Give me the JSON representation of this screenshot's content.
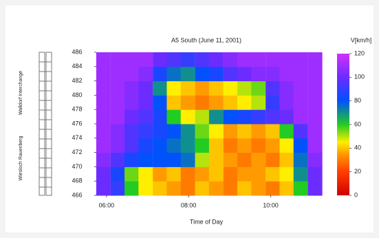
{
  "chart_data": {
    "type": "heatmap",
    "title": "A5 South (June 11, 2001)",
    "x_label": "Time of Day",
    "colorbar_label": "V[km/h]",
    "side_labels": [
      "Walldorf Interchange",
      "Wiesloch Rauenberg"
    ],
    "x": [
      5.92,
      6.27,
      6.61,
      6.95,
      7.3,
      7.64,
      7.98,
      8.33,
      8.67,
      9.02,
      9.36,
      9.7,
      10.05,
      10.39,
      10.73,
      11.08
    ],
    "y": [
      467,
      469,
      471,
      473,
      475,
      477,
      479,
      481,
      483,
      485
    ],
    "z": [
      [
        100,
        90,
        60,
        45,
        40,
        35,
        30,
        40,
        35,
        30,
        40,
        35,
        30,
        40,
        60,
        100
      ],
      [
        100,
        85,
        55,
        45,
        35,
        40,
        30,
        35,
        40,
        30,
        35,
        35,
        40,
        45,
        70,
        100
      ],
      [
        105,
        95,
        85,
        80,
        80,
        80,
        75,
        50,
        40,
        35,
        30,
        35,
        30,
        40,
        75,
        105
      ],
      [
        110,
        105,
        95,
        85,
        80,
        75,
        70,
        60,
        40,
        30,
        35,
        30,
        35,
        45,
        80,
        110
      ],
      [
        110,
        105,
        95,
        90,
        85,
        80,
        70,
        55,
        45,
        35,
        40,
        35,
        40,
        60,
        95,
        110
      ],
      [
        110,
        110,
        100,
        95,
        85,
        60,
        45,
        50,
        70,
        80,
        85,
        90,
        95,
        100,
        110,
        110
      ],
      [
        110,
        110,
        105,
        100,
        80,
        40,
        35,
        30,
        35,
        40,
        45,
        50,
        90,
        105,
        110,
        110
      ],
      [
        110,
        110,
        105,
        100,
        70,
        45,
        40,
        35,
        40,
        45,
        50,
        55,
        95,
        105,
        110,
        110
      ],
      [
        110,
        110,
        110,
        105,
        85,
        75,
        70,
        80,
        85,
        95,
        100,
        105,
        105,
        110,
        110,
        110
      ],
      [
        110,
        110,
        110,
        110,
        100,
        95,
        90,
        95,
        100,
        105,
        110,
        110,
        110,
        110,
        110,
        110
      ]
    ],
    "xlim": [
      5.75,
      11.25
    ],
    "xticks": [
      {
        "value": 6,
        "label": "06:00"
      },
      {
        "value": 8,
        "label": "08:00"
      },
      {
        "value": 10,
        "label": "10:00"
      }
    ],
    "ylim": [
      466,
      486
    ],
    "yticks": [
      466,
      468,
      470,
      472,
      474,
      476,
      478,
      480,
      482,
      484,
      486
    ],
    "clim": [
      0,
      120
    ],
    "cticks": [
      0,
      20,
      40,
      60,
      80,
      100,
      120
    ]
  }
}
